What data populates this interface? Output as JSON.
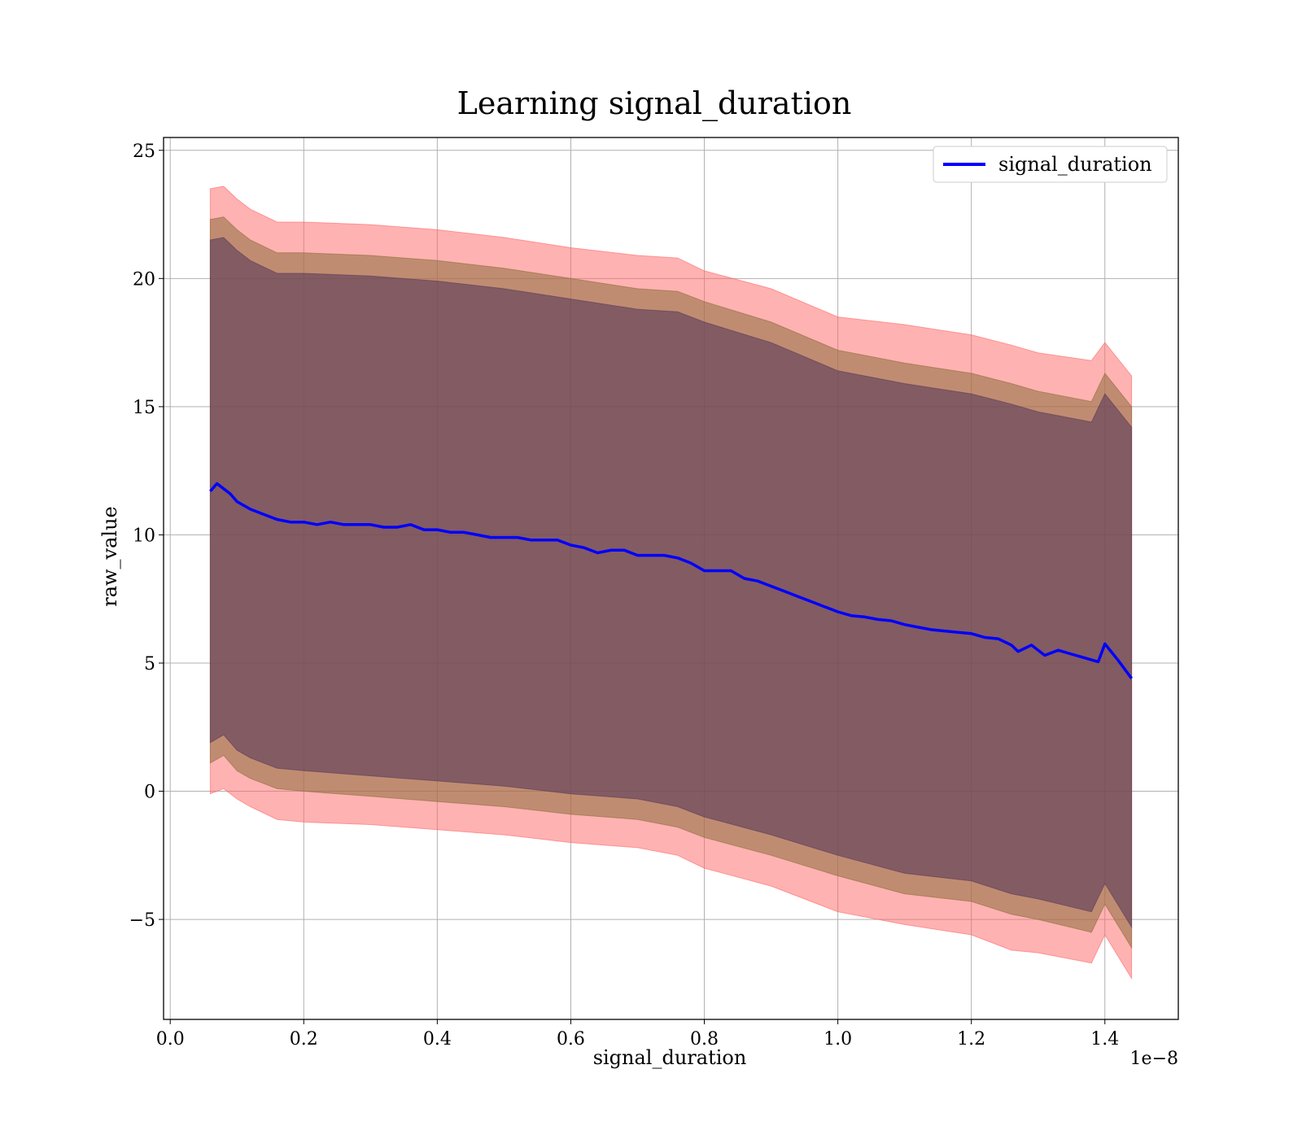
{
  "chart_data": {
    "type": "line",
    "title": "Learning signal_duration",
    "xlabel": "signal_duration",
    "ylabel": "raw_value",
    "x_offset_label": "1e−8",
    "xlim": [
      -0.01,
      1.51
    ],
    "ylim": [
      -8.9,
      25.5
    ],
    "x_ticks": [
      0.0,
      0.2,
      0.4,
      0.6,
      0.8,
      1.0,
      1.2,
      1.4
    ],
    "x_tick_labels": [
      "0.0",
      "0.2",
      "0.4",
      "0.6",
      "0.8",
      "1.0",
      "1.2",
      "1.4"
    ],
    "y_ticks": [
      -5,
      0,
      5,
      10,
      15,
      20,
      25
    ],
    "y_tick_labels": [
      "−5",
      "0",
      "5",
      "10",
      "15",
      "20",
      "25"
    ],
    "grid": true,
    "legend_position": "top-right",
    "colors": {
      "line": "#0000ff",
      "band_outer": "#ff6666",
      "band_middle": "#8c6e3c",
      "band_inner": "#5a3a5a",
      "grid": "#b0b0b0"
    },
    "series": [
      {
        "name": "signal_duration",
        "x": [
          0.06,
          0.07,
          0.08,
          0.09,
          0.1,
          0.12,
          0.14,
          0.16,
          0.18,
          0.2,
          0.22,
          0.24,
          0.26,
          0.28,
          0.3,
          0.32,
          0.34,
          0.36,
          0.38,
          0.4,
          0.42,
          0.44,
          0.46,
          0.48,
          0.5,
          0.52,
          0.54,
          0.56,
          0.58,
          0.6,
          0.62,
          0.64,
          0.66,
          0.68,
          0.7,
          0.72,
          0.74,
          0.76,
          0.78,
          0.8,
          0.82,
          0.84,
          0.86,
          0.88,
          0.9,
          0.92,
          0.94,
          0.96,
          0.98,
          1.0,
          1.02,
          1.04,
          1.06,
          1.08,
          1.1,
          1.12,
          1.14,
          1.16,
          1.18,
          1.2,
          1.22,
          1.24,
          1.26,
          1.27,
          1.29,
          1.31,
          1.33,
          1.35,
          1.37,
          1.39,
          1.4,
          1.42,
          1.44
        ],
        "values": [
          11.7,
          12.0,
          11.8,
          11.6,
          11.3,
          11.0,
          10.8,
          10.6,
          10.5,
          10.5,
          10.4,
          10.5,
          10.4,
          10.4,
          10.4,
          10.3,
          10.3,
          10.4,
          10.2,
          10.2,
          10.1,
          10.1,
          10.0,
          9.9,
          9.9,
          9.9,
          9.8,
          9.8,
          9.8,
          9.6,
          9.5,
          9.3,
          9.4,
          9.4,
          9.2,
          9.2,
          9.2,
          9.1,
          8.9,
          8.6,
          8.6,
          8.6,
          8.3,
          8.2,
          8.0,
          7.8,
          7.6,
          7.4,
          7.2,
          7.0,
          6.85,
          6.8,
          6.7,
          6.65,
          6.5,
          6.4,
          6.3,
          6.25,
          6.2,
          6.15,
          6.0,
          5.95,
          5.7,
          5.45,
          5.7,
          5.3,
          5.5,
          5.35,
          5.2,
          5.05,
          5.75,
          5.1,
          4.4
        ]
      }
    ],
    "bands": [
      {
        "x": [
          0.06,
          0.08,
          0.1,
          0.12,
          0.16,
          0.2,
          0.3,
          0.4,
          0.5,
          0.6,
          0.7,
          0.76,
          0.8,
          0.9,
          1.0,
          1.1,
          1.2,
          1.26,
          1.3,
          1.38,
          1.4,
          1.44
        ],
        "lower": [
          -0.1,
          0.1,
          -0.3,
          -0.6,
          -1.1,
          -1.2,
          -1.3,
          -1.5,
          -1.7,
          -2.0,
          -2.2,
          -2.5,
          -3.0,
          -3.7,
          -4.7,
          -5.2,
          -5.6,
          -6.2,
          -6.3,
          -6.7,
          -5.6,
          -7.3
        ],
        "upper": [
          23.5,
          23.6,
          23.1,
          22.7,
          22.2,
          22.2,
          22.1,
          21.9,
          21.6,
          21.2,
          20.9,
          20.8,
          20.3,
          19.6,
          18.5,
          18.2,
          17.8,
          17.4,
          17.1,
          16.8,
          17.5,
          16.2
        ]
      },
      {
        "x": [
          0.06,
          0.08,
          0.1,
          0.12,
          0.16,
          0.2,
          0.3,
          0.4,
          0.5,
          0.6,
          0.7,
          0.76,
          0.8,
          0.9,
          1.0,
          1.1,
          1.2,
          1.26,
          1.3,
          1.38,
          1.4,
          1.44
        ],
        "lower": [
          1.1,
          1.4,
          0.8,
          0.5,
          0.1,
          0.0,
          -0.2,
          -0.4,
          -0.6,
          -0.9,
          -1.1,
          -1.4,
          -1.8,
          -2.5,
          -3.3,
          -4.0,
          -4.3,
          -4.8,
          -5.0,
          -5.5,
          -4.4,
          -6.1
        ],
        "upper": [
          22.3,
          22.4,
          21.9,
          21.5,
          21.0,
          21.0,
          20.9,
          20.7,
          20.4,
          20.0,
          19.6,
          19.5,
          19.1,
          18.3,
          17.2,
          16.7,
          16.3,
          15.9,
          15.6,
          15.2,
          16.3,
          15.0
        ]
      },
      {
        "x": [
          0.06,
          0.08,
          0.1,
          0.12,
          0.16,
          0.2,
          0.3,
          0.4,
          0.5,
          0.6,
          0.7,
          0.76,
          0.8,
          0.9,
          1.0,
          1.1,
          1.2,
          1.26,
          1.3,
          1.38,
          1.4,
          1.44
        ],
        "lower": [
          1.9,
          2.2,
          1.6,
          1.3,
          0.9,
          0.8,
          0.6,
          0.4,
          0.2,
          -0.1,
          -0.3,
          -0.6,
          -1.0,
          -1.7,
          -2.5,
          -3.2,
          -3.5,
          -4.0,
          -4.2,
          -4.7,
          -3.6,
          -5.3
        ],
        "upper": [
          21.5,
          21.6,
          21.1,
          20.7,
          20.2,
          20.2,
          20.1,
          19.9,
          19.6,
          19.2,
          18.8,
          18.7,
          18.3,
          17.5,
          16.4,
          15.9,
          15.5,
          15.1,
          14.8,
          14.4,
          15.5,
          14.2
        ]
      }
    ]
  }
}
